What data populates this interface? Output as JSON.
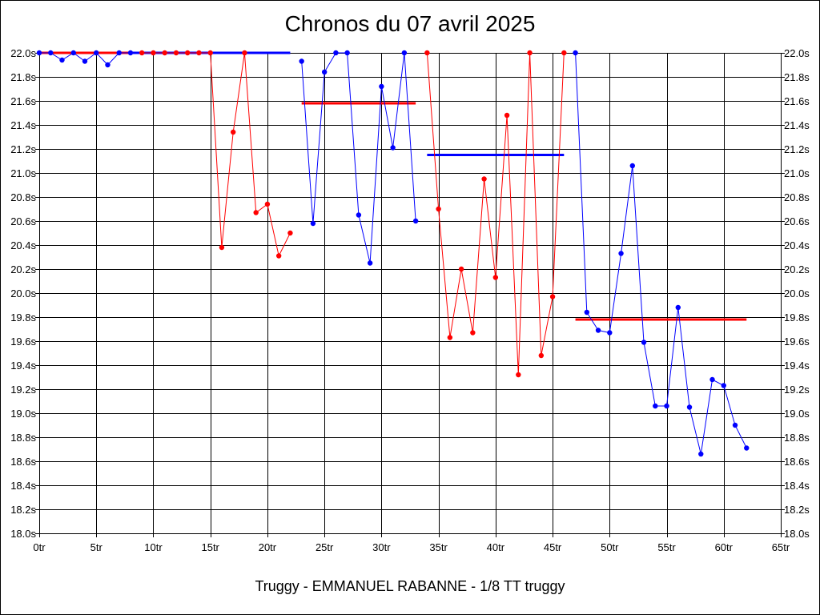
{
  "chart_data": {
    "type": "line",
    "title": "Chronos du 07 avril 2025",
    "footer": "Truggy - EMMANUEL RABANNE - 1/8 TT truggy",
    "xlabel": "",
    "ylabel": "",
    "xlim": [
      0,
      65
    ],
    "ylim": [
      18.0,
      22.0
    ],
    "x_tick_labels": [
      "0tr",
      "5tr",
      "10tr",
      "15tr",
      "20tr",
      "25tr",
      "30tr",
      "35tr",
      "40tr",
      "45tr",
      "50tr",
      "55tr",
      "60tr",
      "65tr"
    ],
    "y_tick_labels": [
      "18.0s",
      "18.2s",
      "18.4s",
      "18.6s",
      "18.8s",
      "19.0s",
      "19.2s",
      "19.4s",
      "19.6s",
      "19.8s",
      "20.0s",
      "20.2s",
      "20.4s",
      "20.6s",
      "20.8s",
      "21.0s",
      "21.2s",
      "21.4s",
      "21.6s",
      "21.8s",
      "22.0s"
    ],
    "grid": true,
    "colors": {
      "blue": "#0000ff",
      "red": "#ff0000"
    },
    "series": [
      {
        "color": "blue",
        "x": [
          0,
          1,
          2,
          3,
          4,
          5,
          6,
          7,
          8
        ],
        "y": [
          22.0,
          22.0,
          21.94,
          22.0,
          21.93,
          22.0,
          21.9,
          22.0,
          22.0
        ]
      },
      {
        "color": "red",
        "x": [
          9,
          10,
          11,
          12,
          13,
          14,
          15,
          16,
          17,
          18,
          19,
          20,
          21,
          22
        ],
        "y": [
          22.0,
          22.0,
          22.0,
          22.0,
          22.0,
          22.0,
          22.0,
          20.38,
          21.34,
          22.0,
          20.67,
          20.74,
          20.31,
          20.5
        ]
      },
      {
        "color": "blue",
        "x": [
          23,
          24,
          25,
          26,
          27,
          28,
          29,
          30,
          31,
          32,
          33
        ],
        "y": [
          21.93,
          20.58,
          21.84,
          22.0,
          22.0,
          20.65,
          20.25,
          21.72,
          21.21,
          22.0,
          20.6
        ]
      },
      {
        "color": "red",
        "x": [
          34,
          35,
          36,
          37,
          38,
          39,
          40,
          41,
          42,
          43,
          44,
          45,
          46
        ],
        "y": [
          22.0,
          20.7,
          19.63,
          20.2,
          19.67,
          20.95,
          20.13,
          21.48,
          19.32,
          22.0,
          19.48,
          19.97,
          22.0
        ]
      },
      {
        "color": "blue",
        "x": [
          47,
          48,
          49,
          50,
          51,
          52,
          53,
          54,
          55,
          56,
          57,
          58,
          59,
          60,
          61,
          62
        ],
        "y": [
          22.0,
          19.84,
          19.69,
          19.67,
          20.33,
          21.06,
          19.59,
          19.06,
          19.06,
          19.88,
          19.05,
          18.66,
          19.28,
          19.23,
          18.9,
          18.71
        ]
      }
    ],
    "averages": [
      {
        "color": "red",
        "x": [
          0,
          8
        ],
        "y": 22.0
      },
      {
        "color": "blue",
        "x": [
          8,
          22
        ],
        "y": 22.0
      },
      {
        "color": "red",
        "x": [
          23,
          33
        ],
        "y": 21.58
      },
      {
        "color": "blue",
        "x": [
          34,
          46
        ],
        "y": 21.15
      },
      {
        "color": "red",
        "x": [
          47,
          62
        ],
        "y": 19.78
      }
    ]
  }
}
